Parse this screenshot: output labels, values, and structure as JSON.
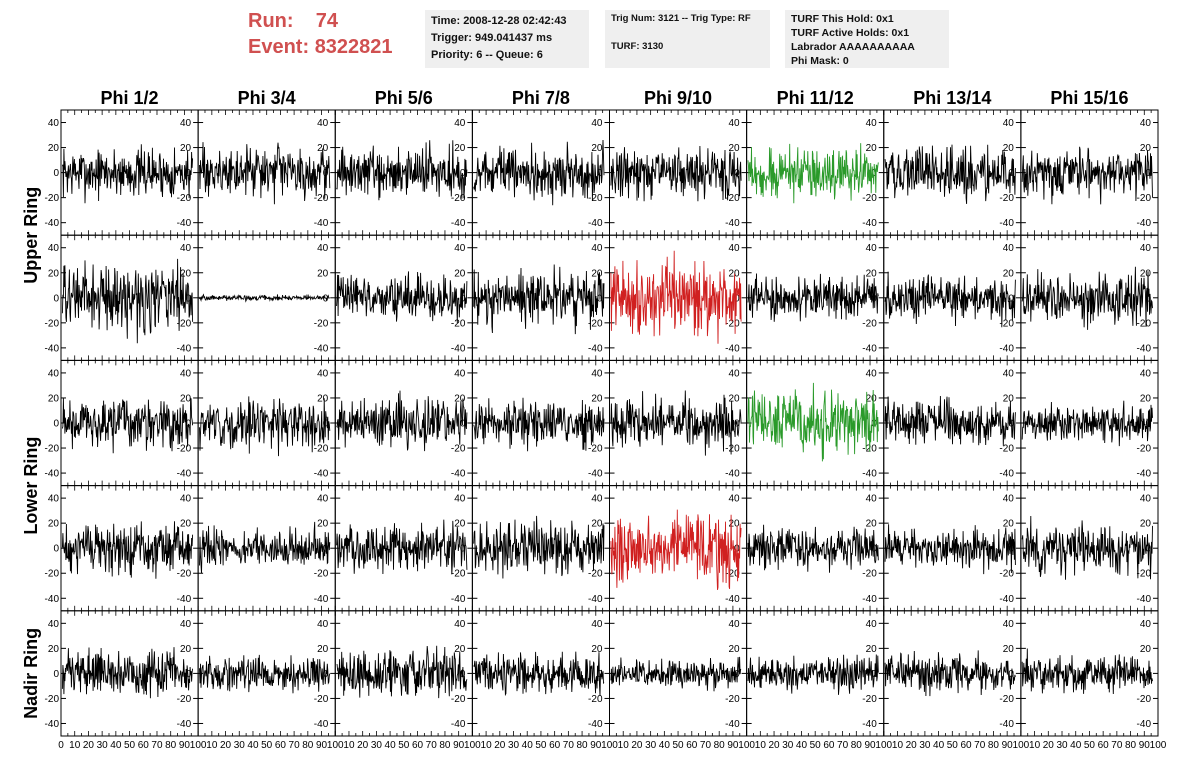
{
  "header": {
    "run_label": "Run:",
    "run_value": "74",
    "event_label": "Event:",
    "event_value": "8322821",
    "info1": [
      "Time: 2008-12-28 02:42:43",
      "Trigger: 949.041437 ms",
      "Priority: 6 -- Queue: 6"
    ],
    "info2": [
      "Trig Num: 3121 -- Trig Type: RF",
      "",
      "TURF: 3130"
    ],
    "info3": [
      "TURF This Hold: 0x1",
      "TURF Active Holds: 0x1",
      "Labrador AAAAAAAAAA",
      "Phi Mask: 0"
    ]
  },
  "chart_data": {
    "type": "line",
    "columns": [
      "Phi 1/2",
      "Phi 3/4",
      "Phi 5/6",
      "Phi 7/8",
      "Phi 9/10",
      "Phi 11/12",
      "Phi 13/14",
      "Phi 15/16"
    ],
    "row_labels": [
      {
        "text": "Upper Ring",
        "rows": [
          0,
          1
        ]
      },
      {
        "text": "Lower Ring",
        "rows": [
          2,
          3
        ]
      },
      {
        "text": "Nadir Ring",
        "rows": [
          4
        ]
      }
    ],
    "xlim": [
      0,
      100
    ],
    "ylim": [
      -50,
      50
    ],
    "x_ticks": [
      "0",
      "10",
      "20",
      "30",
      "40",
      "50",
      "60",
      "70",
      "80",
      "90",
      "100"
    ],
    "y_ticks": [
      "-40",
      "-20",
      "0",
      "20",
      "40"
    ],
    "colors": {
      "normal": "#000000",
      "triggered": "#2a9a2a",
      "highlighted": "#d02020"
    },
    "panels": [
      {
        "row": 0,
        "col": 0,
        "color": "normal",
        "amplitude": 18
      },
      {
        "row": 0,
        "col": 1,
        "color": "normal",
        "amplitude": 18
      },
      {
        "row": 0,
        "col": 2,
        "color": "normal",
        "amplitude": 18
      },
      {
        "row": 0,
        "col": 3,
        "color": "normal",
        "amplitude": 18
      },
      {
        "row": 0,
        "col": 4,
        "color": "normal",
        "amplitude": 18
      },
      {
        "row": 0,
        "col": 5,
        "color": "triggered",
        "amplitude": 18
      },
      {
        "row": 0,
        "col": 6,
        "color": "normal",
        "amplitude": 18
      },
      {
        "row": 0,
        "col": 7,
        "color": "normal",
        "amplitude": 18
      },
      {
        "row": 1,
        "col": 0,
        "color": "normal",
        "amplitude": 24
      },
      {
        "row": 1,
        "col": 1,
        "color": "normal",
        "amplitude": 2
      },
      {
        "row": 1,
        "col": 2,
        "color": "normal",
        "amplitude": 16
      },
      {
        "row": 1,
        "col": 3,
        "color": "normal",
        "amplitude": 20
      },
      {
        "row": 1,
        "col": 4,
        "color": "highlighted",
        "amplitude": 26
      },
      {
        "row": 1,
        "col": 5,
        "color": "normal",
        "amplitude": 15
      },
      {
        "row": 1,
        "col": 6,
        "color": "normal",
        "amplitude": 16
      },
      {
        "row": 1,
        "col": 7,
        "color": "normal",
        "amplitude": 20
      },
      {
        "row": 2,
        "col": 0,
        "color": "normal",
        "amplitude": 18
      },
      {
        "row": 2,
        "col": 1,
        "color": "normal",
        "amplitude": 18
      },
      {
        "row": 2,
        "col": 2,
        "color": "normal",
        "amplitude": 18
      },
      {
        "row": 2,
        "col": 3,
        "color": "normal",
        "amplitude": 16
      },
      {
        "row": 2,
        "col": 4,
        "color": "normal",
        "amplitude": 18
      },
      {
        "row": 2,
        "col": 5,
        "color": "triggered",
        "amplitude": 24
      },
      {
        "row": 2,
        "col": 6,
        "color": "normal",
        "amplitude": 16
      },
      {
        "row": 2,
        "col": 7,
        "color": "normal",
        "amplitude": 14
      },
      {
        "row": 3,
        "col": 0,
        "color": "normal",
        "amplitude": 18
      },
      {
        "row": 3,
        "col": 1,
        "color": "normal",
        "amplitude": 14
      },
      {
        "row": 3,
        "col": 2,
        "color": "normal",
        "amplitude": 18
      },
      {
        "row": 3,
        "col": 3,
        "color": "normal",
        "amplitude": 20
      },
      {
        "row": 3,
        "col": 4,
        "color": "highlighted",
        "amplitude": 24
      },
      {
        "row": 3,
        "col": 5,
        "color": "normal",
        "amplitude": 15
      },
      {
        "row": 3,
        "col": 6,
        "color": "normal",
        "amplitude": 15
      },
      {
        "row": 3,
        "col": 7,
        "color": "normal",
        "amplitude": 18
      },
      {
        "row": 4,
        "col": 0,
        "color": "normal",
        "amplitude": 16
      },
      {
        "row": 4,
        "col": 1,
        "color": "normal",
        "amplitude": 12
      },
      {
        "row": 4,
        "col": 2,
        "color": "normal",
        "amplitude": 18
      },
      {
        "row": 4,
        "col": 3,
        "color": "normal",
        "amplitude": 14
      },
      {
        "row": 4,
        "col": 4,
        "color": "normal",
        "amplitude": 10
      },
      {
        "row": 4,
        "col": 5,
        "color": "normal",
        "amplitude": 12
      },
      {
        "row": 4,
        "col": 6,
        "color": "normal",
        "amplitude": 14
      },
      {
        "row": 4,
        "col": 7,
        "color": "normal",
        "amplitude": 14
      }
    ]
  }
}
